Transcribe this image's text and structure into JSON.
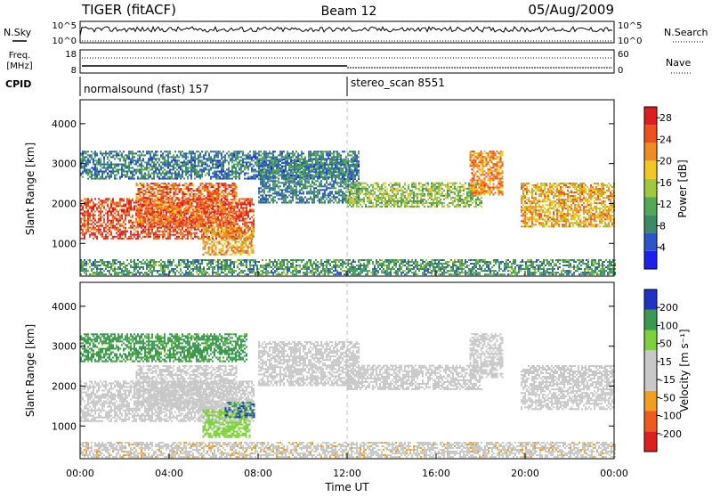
{
  "header": {
    "station": "TIGER (fitACF)",
    "beam": "Beam 12",
    "date": "05/Aug/2009"
  },
  "strip_panels": {
    "nsky_label": "N.Sky",
    "nsky_ticks": [
      "10^5",
      "10^0"
    ],
    "nsearch_label": "N.Search",
    "nsearch_ticks": [
      "10^5",
      "10^0"
    ],
    "freq_label": "Freq.",
    "freq_unit": "[MHz]",
    "freq_ticks": [
      "18",
      "8"
    ],
    "nave_label": "Nave",
    "nave_ticks": [
      "60",
      "0"
    ],
    "cpid_label": "CPID",
    "cpid_segments": [
      {
        "label": "normalsound (fast) 157",
        "start_hour": 0
      },
      {
        "label": "stereo_scan 8551",
        "start_hour": 12
      }
    ]
  },
  "x_axis": {
    "label": "Time UT",
    "ticks": [
      "00:00",
      "04:00",
      "08:00",
      "12:00",
      "16:00",
      "20:00",
      "00:00"
    ],
    "range_hours": [
      0,
      24
    ]
  },
  "chart_data": [
    {
      "type": "heatmap",
      "name": "power",
      "ylabel": "Slant Range [km]",
      "ylim": [
        180,
        4600
      ],
      "yticks": [
        "1000",
        "2000",
        "3000",
        "4000"
      ],
      "colorbar_label": "Power [dB]",
      "colorbar_ticks": [
        "4",
        "8",
        "12",
        "16",
        "20",
        "24",
        "28"
      ],
      "colorbar_range": [
        0,
        30
      ],
      "colors": [
        "#1e1ef0",
        "#2b55c8",
        "#3c8a64",
        "#55a855",
        "#a0c83c",
        "#f0c81e",
        "#f08c1e",
        "#f0501e",
        "#dc1e1e"
      ],
      "regions": [
        {
          "t0": 0.0,
          "t1": 7.8,
          "r0": 1100,
          "r1": 2100,
          "level": 26
        },
        {
          "t0": 2.5,
          "t1": 7.0,
          "r0": 1400,
          "r1": 2500,
          "level": 24
        },
        {
          "t0": 5.5,
          "t1": 7.8,
          "r0": 700,
          "r1": 1400,
          "level": 20
        },
        {
          "t0": 0.0,
          "t1": 12.5,
          "r0": 2600,
          "r1": 3300,
          "level": 8
        },
        {
          "t0": 8.0,
          "t1": 12.5,
          "r0": 2000,
          "r1": 3100,
          "level": 8
        },
        {
          "t0": 12.0,
          "t1": 18.0,
          "r0": 1900,
          "r1": 2500,
          "level": 14
        },
        {
          "t0": 17.5,
          "t1": 19.0,
          "r0": 2200,
          "r1": 3300,
          "level": 22
        },
        {
          "t0": 19.8,
          "t1": 24.0,
          "r0": 1400,
          "r1": 2500,
          "level": 20
        },
        {
          "t0": 0.0,
          "t1": 24.0,
          "r0": 200,
          "r1": 600,
          "level": 10
        }
      ]
    },
    {
      "type": "heatmap",
      "name": "velocity",
      "ylabel": "Slant Range [km]",
      "ylim": [
        180,
        4600
      ],
      "yticks": [
        "1000",
        "2000",
        "3000",
        "4000"
      ],
      "colorbar_label": "Velocity [m s⁻¹]",
      "colorbar_ticks": [
        "200",
        "100",
        "50",
        "15",
        "-15",
        "-50",
        "-100",
        "-200"
      ],
      "colorbar_range": [
        -250,
        250
      ],
      "colors": [
        "#e01e1e",
        "#f05a1e",
        "#f0a01e",
        "#c8c8c8",
        "#c8c8c8",
        "#7dd23c",
        "#3c9a50",
        "#1e32c8"
      ],
      "regions": [
        {
          "t0": 0.0,
          "t1": 7.8,
          "r0": 1100,
          "r1": 2100,
          "level": 0
        },
        {
          "t0": 2.5,
          "t1": 7.0,
          "r0": 1400,
          "r1": 2500,
          "level": 0
        },
        {
          "t0": 5.5,
          "t1": 7.6,
          "r0": 700,
          "r1": 1400,
          "level": 80
        },
        {
          "t0": 6.5,
          "t1": 7.8,
          "r0": 1200,
          "r1": 1600,
          "level": 180
        },
        {
          "t0": 0.0,
          "t1": 7.5,
          "r0": 2600,
          "r1": 3300,
          "level": 150
        },
        {
          "t0": 8.0,
          "t1": 12.5,
          "r0": 2000,
          "r1": 3100,
          "level": 0
        },
        {
          "t0": 12.0,
          "t1": 18.0,
          "r0": 1900,
          "r1": 2500,
          "level": 0
        },
        {
          "t0": 17.5,
          "t1": 19.0,
          "r0": 2200,
          "r1": 3300,
          "level": 0
        },
        {
          "t0": 19.8,
          "t1": 24.0,
          "r0": 1400,
          "r1": 2500,
          "level": 0
        },
        {
          "t0": 0.0,
          "t1": 24.0,
          "r0": 200,
          "r1": 600,
          "level": -40
        }
      ]
    }
  ]
}
